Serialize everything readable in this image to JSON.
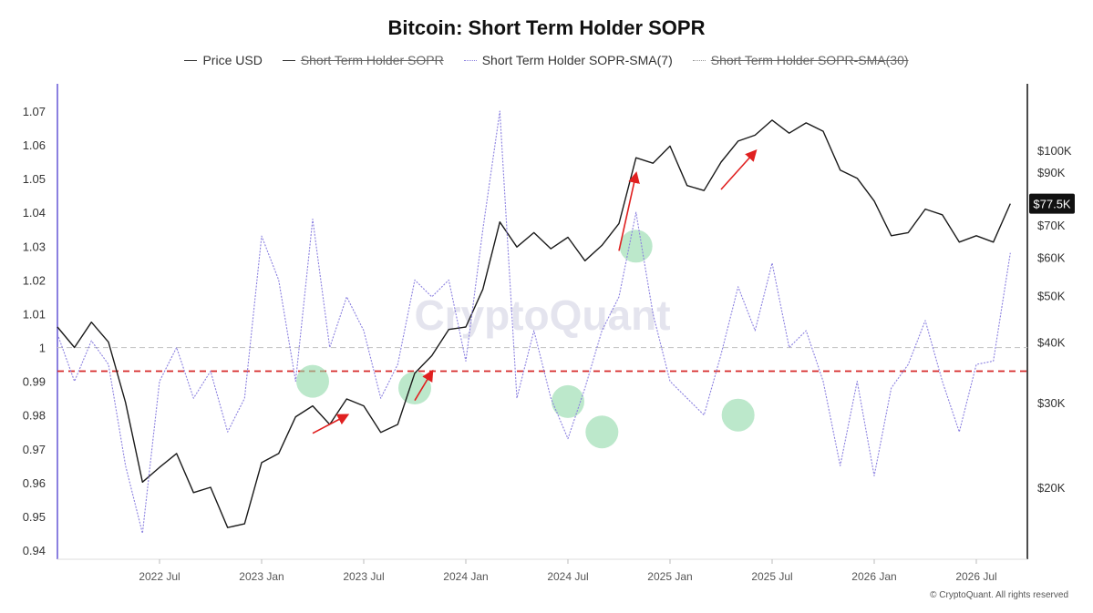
{
  "title": "Bitcoin: Short Term Holder SOPR",
  "legend": [
    {
      "label": "Price USD",
      "state": "on",
      "style": "solid-dark"
    },
    {
      "label": "Short Term Holder SOPR",
      "state": "off",
      "style": "solid-dark"
    },
    {
      "label": "Short Term Holder SOPR-SMA(7)",
      "state": "on",
      "style": "dotted-purple"
    },
    {
      "label": "Short Term Holder SOPR-SMA(30)",
      "state": "off",
      "style": "dotted-grey"
    }
  ],
  "watermark": "CryptoQuant",
  "copyright": "© CryptoQuant. All rights reserved",
  "colors": {
    "price": "#1a1a1a",
    "sopr": "#8b80e0",
    "threshold": "#d62828",
    "baseline": "#c8c8c8",
    "marker": "#8fd8a8",
    "arrow": "#e02020",
    "price_tag_bg": "#111111"
  },
  "chart_data": {
    "type": "line",
    "x_ticks": [
      "2022 Jul",
      "2023 Jan",
      "2023 Jul",
      "2024 Jan",
      "2024 Jul",
      "2025 Jan",
      "2025 Jul",
      "2026 Jan",
      "2026 Jul"
    ],
    "x_range": [
      "2022-01",
      "2026-10"
    ],
    "left_axis": {
      "ticks": [
        "1.07",
        "1.06",
        "1.05",
        "1.04",
        "1.03",
        "1.02",
        "1.01",
        "1",
        "0.99",
        "0.98",
        "0.97",
        "0.96",
        "0.95",
        "0.94"
      ],
      "range": [
        0.94,
        1.07
      ]
    },
    "right_axis": {
      "scale": "log",
      "ticks": [
        "$100K",
        "$90K",
        "$70K",
        "$60K",
        "$50K",
        "$40K",
        "$30K",
        "$20K"
      ],
      "tick_values": [
        100000,
        90000,
        70000,
        60000,
        50000,
        40000,
        30000,
        20000
      ],
      "current_label": "$77.5K",
      "current_value": 77500
    },
    "baseline_value": 1.0,
    "threshold_value": 0.993,
    "series": [
      {
        "name": "Price USD",
        "axis": "right",
        "points": [
          [
            "2022-01",
            43000
          ],
          [
            "2022-02",
            39000
          ],
          [
            "2022-03",
            44000
          ],
          [
            "2022-04",
            40000
          ],
          [
            "2022-05",
            30000
          ],
          [
            "2022-06",
            20500
          ],
          [
            "2022-07",
            22000
          ],
          [
            "2022-08",
            23500
          ],
          [
            "2022-09",
            19500
          ],
          [
            "2022-10",
            20000
          ],
          [
            "2022-11",
            16500
          ],
          [
            "2022-12",
            16800
          ],
          [
            "2023-01",
            22500
          ],
          [
            "2023-02",
            23500
          ],
          [
            "2023-03",
            28000
          ],
          [
            "2023-04",
            29500
          ],
          [
            "2023-05",
            27000
          ],
          [
            "2023-06",
            30500
          ],
          [
            "2023-07",
            29500
          ],
          [
            "2023-08",
            26000
          ],
          [
            "2023-09",
            27000
          ],
          [
            "2023-10",
            34500
          ],
          [
            "2023-11",
            37500
          ],
          [
            "2023-12",
            42500
          ],
          [
            "2024-01",
            43000
          ],
          [
            "2024-02",
            51500
          ],
          [
            "2024-03",
            71000
          ],
          [
            "2024-04",
            63000
          ],
          [
            "2024-05",
            67500
          ],
          [
            "2024-06",
            62500
          ],
          [
            "2024-07",
            66000
          ],
          [
            "2024-08",
            59000
          ],
          [
            "2024-09",
            63500
          ],
          [
            "2024-10",
            70500
          ],
          [
            "2024-11",
            96500
          ],
          [
            "2024-12",
            94000
          ],
          [
            "2025-01",
            102000
          ],
          [
            "2025-02",
            84500
          ],
          [
            "2025-03",
            82500
          ],
          [
            "2025-04",
            94500
          ],
          [
            "2025-05",
            104500
          ],
          [
            "2025-06",
            107500
          ],
          [
            "2025-07",
            115500
          ],
          [
            "2025-08",
            108500
          ],
          [
            "2025-09",
            114000
          ],
          [
            "2025-10",
            109500
          ],
          [
            "2025-11",
            91000
          ],
          [
            "2025-12",
            87500
          ],
          [
            "2026-01",
            78500
          ],
          [
            "2026-02",
            66500
          ],
          [
            "2026-03",
            67500
          ],
          [
            "2026-04",
            75500
          ],
          [
            "2026-05",
            73500
          ],
          [
            "2026-06",
            64500
          ],
          [
            "2026-07",
            66500
          ],
          [
            "2026-08",
            64500
          ],
          [
            "2026-09",
            77500
          ]
        ]
      },
      {
        "name": "Short Term Holder SOPR-SMA(7)",
        "axis": "left",
        "points": [
          [
            "2022-01",
            1.004
          ],
          [
            "2022-02",
            0.99
          ],
          [
            "2022-03",
            1.002
          ],
          [
            "2022-04",
            0.995
          ],
          [
            "2022-05",
            0.965
          ],
          [
            "2022-06",
            0.945
          ],
          [
            "2022-07",
            0.99
          ],
          [
            "2022-08",
            1.0
          ],
          [
            "2022-09",
            0.985
          ],
          [
            "2022-10",
            0.993
          ],
          [
            "2022-11",
            0.975
          ],
          [
            "2022-12",
            0.985
          ],
          [
            "2023-01",
            1.033
          ],
          [
            "2023-02",
            1.02
          ],
          [
            "2023-03",
            0.99
          ],
          [
            "2023-04",
            1.038
          ],
          [
            "2023-05",
            1.0
          ],
          [
            "2023-06",
            1.015
          ],
          [
            "2023-07",
            1.005
          ],
          [
            "2023-08",
            0.985
          ],
          [
            "2023-09",
            0.995
          ],
          [
            "2023-10",
            1.02
          ],
          [
            "2023-11",
            1.015
          ],
          [
            "2023-12",
            1.02
          ],
          [
            "2024-01",
            0.996
          ],
          [
            "2024-02",
            1.035
          ],
          [
            "2024-03",
            1.07
          ],
          [
            "2024-04",
            0.985
          ],
          [
            "2024-05",
            1.005
          ],
          [
            "2024-06",
            0.985
          ],
          [
            "2024-07",
            0.973
          ],
          [
            "2024-08",
            0.988
          ],
          [
            "2024-09",
            1.005
          ],
          [
            "2024-10",
            1.015
          ],
          [
            "2024-11",
            1.04
          ],
          [
            "2024-12",
            1.01
          ],
          [
            "2025-01",
            0.99
          ],
          [
            "2025-02",
            0.985
          ],
          [
            "2025-03",
            0.98
          ],
          [
            "2025-04",
            0.998
          ],
          [
            "2025-05",
            1.018
          ],
          [
            "2025-06",
            1.005
          ],
          [
            "2025-07",
            1.025
          ],
          [
            "2025-08",
            1.0
          ],
          [
            "2025-09",
            1.005
          ],
          [
            "2025-10",
            0.99
          ],
          [
            "2025-11",
            0.965
          ],
          [
            "2025-12",
            0.99
          ],
          [
            "2026-01",
            0.962
          ],
          [
            "2026-02",
            0.988
          ],
          [
            "2026-03",
            0.995
          ],
          [
            "2026-04",
            1.008
          ],
          [
            "2026-05",
            0.99
          ],
          [
            "2026-06",
            0.975
          ],
          [
            "2026-07",
            0.995
          ],
          [
            "2026-08",
            0.996
          ],
          [
            "2026-09",
            1.028
          ]
        ]
      }
    ],
    "highlight_markers": [
      [
        "2023-04",
        0.99
      ],
      [
        "2023-10",
        0.988
      ],
      [
        "2024-07",
        0.984
      ],
      [
        "2024-09",
        0.975
      ],
      [
        "2024-11",
        1.03
      ],
      [
        "2025-05",
        0.98
      ]
    ],
    "trend_arrows": [
      [
        "2023-04",
        "2023-06"
      ],
      [
        "2023-10",
        "2023-11"
      ],
      [
        "2024-10",
        "2024-11"
      ],
      [
        "2025-04",
        "2025-06"
      ]
    ],
    "grid": false,
    "legend_position": "top-center"
  }
}
